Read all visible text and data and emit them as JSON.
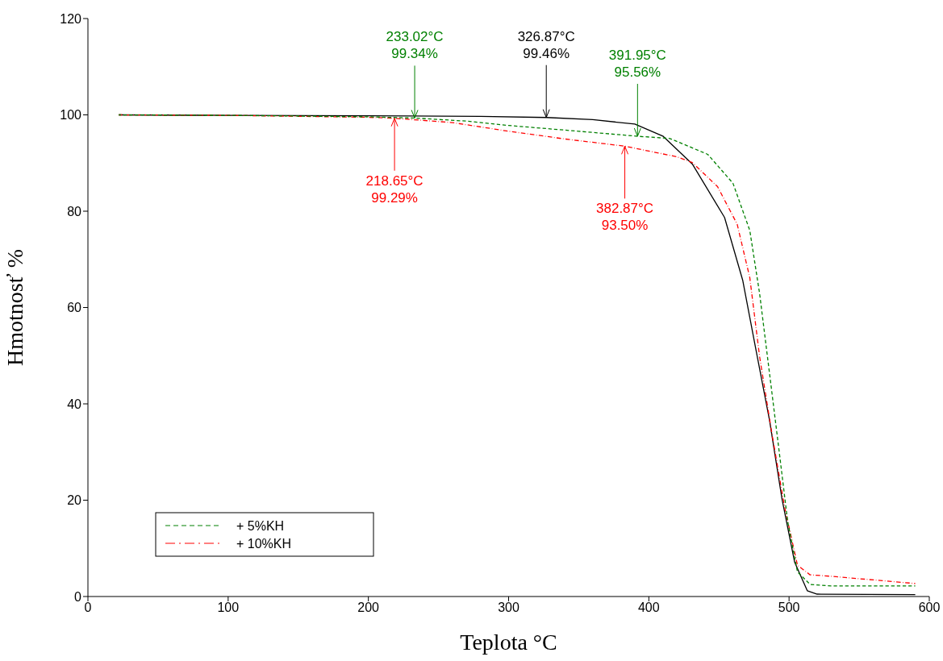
{
  "chart_data": {
    "type": "line",
    "xlabel": "Teplota °C",
    "ylabel": "Hmotnosť %",
    "xlim": [
      0,
      600
    ],
    "xticks": [
      0,
      100,
      200,
      300,
      400,
      500,
      600
    ],
    "ylim": [
      0,
      120
    ],
    "yticks": [
      0,
      20,
      40,
      60,
      80,
      100,
      120
    ],
    "legend": "bottom left",
    "marker": "none",
    "series": [
      {
        "color": "#000000",
        "line_style": "solid",
        "x": [
          22,
          100,
          200,
          280,
          327,
          360,
          390,
          410,
          431,
          454,
          467,
          476,
          486,
          495,
          504,
          513,
          520,
          590
        ],
        "values": [
          100,
          99.9,
          99.8,
          99.7,
          99.46,
          99.0,
          98.1,
          95.6,
          89.8,
          78.7,
          65.6,
          51.8,
          36.7,
          20.2,
          7.1,
          1.2,
          0.5,
          0.4
        ]
      },
      {
        "name": "+ 5%KH",
        "color": "#008000",
        "line_style": "dashed",
        "x": [
          22,
          100,
          200,
          233.02,
          270,
          300,
          350,
          391.95,
          415,
          442,
          460,
          472,
          479,
          486,
          493,
          499,
          506,
          515,
          530,
          590
        ],
        "values": [
          100,
          99.9,
          99.6,
          99.34,
          98.7,
          97.8,
          96.6,
          95.56,
          95.1,
          91.8,
          85.8,
          76.0,
          62.9,
          46.5,
          30.0,
          15.6,
          5.1,
          2.5,
          2.2,
          2.2
        ]
      },
      {
        "name": "+ 10%KH",
        "color": "#ff0000",
        "line_style": "dashdot",
        "x": [
          22,
          100,
          200,
          218.65,
          260,
          300,
          340,
          382.87,
          420,
          431,
          449,
          463,
          472,
          479,
          488,
          497,
          506,
          515,
          530,
          590
        ],
        "values": [
          100,
          99.9,
          99.5,
          99.29,
          98.4,
          96.6,
          95.0,
          93.5,
          91.3,
          90.1,
          85.1,
          77.3,
          66.2,
          49.8,
          33.4,
          18.3,
          6.5,
          4.5,
          4.2,
          2.7
        ]
      }
    ],
    "annotations": [
      {
        "text": "233.02°C\n99.34%",
        "x": 233.02,
        "y": 99.34
      },
      {
        "text": "326.87°C\n99.46%",
        "x": 326.87,
        "y": 99.46
      },
      {
        "text": "391.95°C\n95.56%",
        "x": 391.95,
        "y": 95.56
      },
      {
        "text": "218.65°C\n99.29%",
        "x": 218.65,
        "y": 99.29
      },
      {
        "text": "382.87°C\n93.50%",
        "x": 382.87,
        "y": 93.5
      }
    ]
  }
}
